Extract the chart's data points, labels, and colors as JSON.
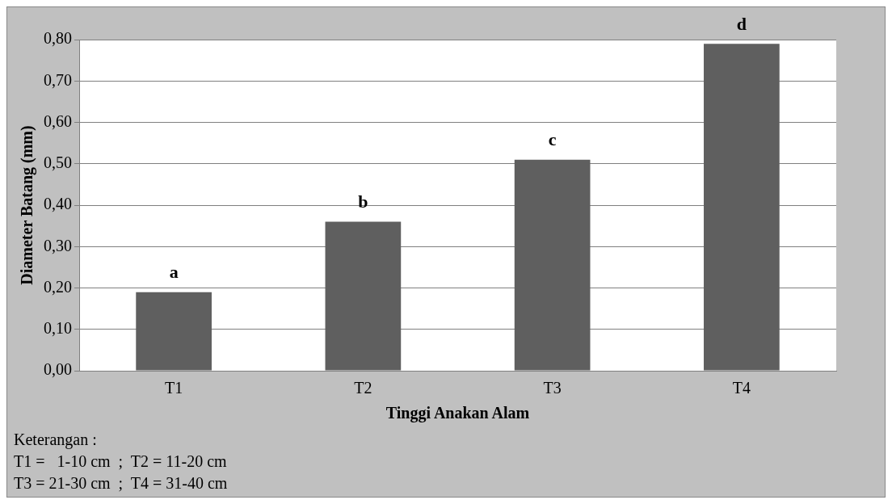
{
  "chart_data": {
    "type": "bar",
    "xlabel": "Tinggi Anakan Alam",
    "ylabel": "Diameter Batang (mm)",
    "categories": [
      "T1",
      "T2",
      "T3",
      "T4"
    ],
    "values": [
      0.19,
      0.36,
      0.51,
      0.79
    ],
    "color": "#5f5f5f",
    "ylim": [
      0,
      0.8
    ],
    "yticks": [
      {
        "value": 0,
        "label": "0,00"
      },
      {
        "value": 0.1,
        "label": "0,10"
      },
      {
        "value": 0.2,
        "label": "0,20"
      },
      {
        "value": 0.3,
        "label": "0,30"
      },
      {
        "value": 0.4,
        "label": "0,40"
      },
      {
        "value": 0.5,
        "label": "0,50"
      },
      {
        "value": 0.6,
        "label": "0,60"
      },
      {
        "value": 0.7,
        "label": "0,70"
      },
      {
        "value": 0.8,
        "label": "0,80"
      }
    ],
    "grid": "y",
    "legend": false,
    "annotations": [
      {
        "text": "a",
        "x": "T1",
        "y": 0.19
      },
      {
        "text": "b",
        "x": "T2",
        "y": 0.36
      },
      {
        "text": "c",
        "x": "T3",
        "y": 0.51
      },
      {
        "text": "d",
        "x": "T4",
        "y": 0.79
      },
      "Keterangan :",
      "T1 =   1-10 cm  ;  T2 = 11-20 cm",
      "T3 = 21-30 cm  ;  T4 = 31-40 cm"
    ]
  }
}
